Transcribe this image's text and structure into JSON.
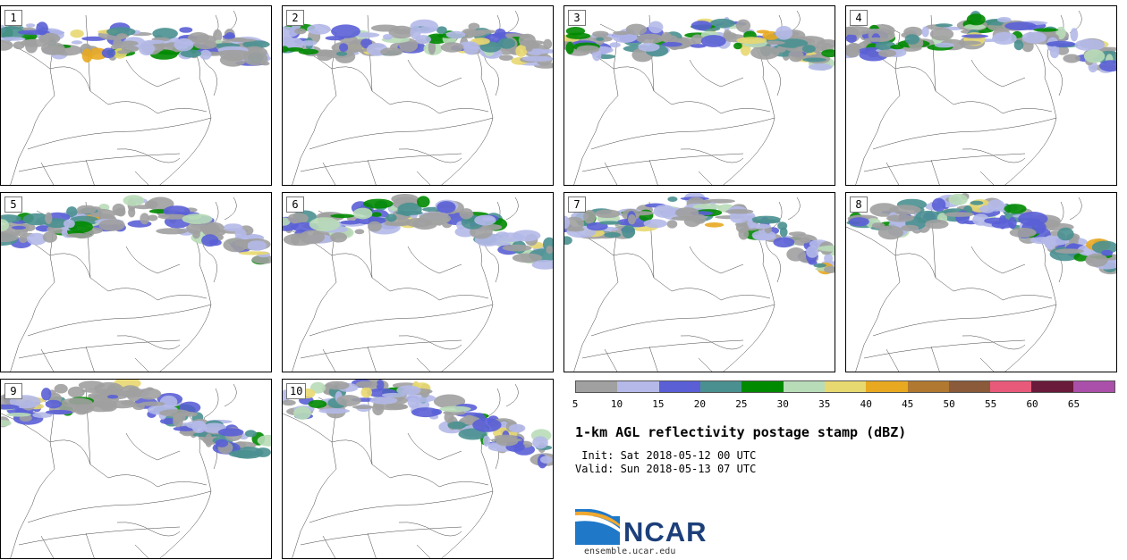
{
  "stamps": [
    {
      "label": "1"
    },
    {
      "label": "2"
    },
    {
      "label": "3"
    },
    {
      "label": "4"
    },
    {
      "label": "5"
    },
    {
      "label": "6"
    },
    {
      "label": "7"
    },
    {
      "label": "8"
    },
    {
      "label": "9"
    },
    {
      "label": "10"
    }
  ],
  "colorbar": {
    "colors": [
      "#a0a0a0",
      "#b4b9e8",
      "#5a5fd6",
      "#4a9090",
      "#008a00",
      "#b8dcb8",
      "#e8d870",
      "#e8a820",
      "#b07830",
      "#8a5a3a",
      "#e85a7a",
      "#6a1a3a",
      "#aa50aa"
    ],
    "ticks": [
      "5",
      "10",
      "15",
      "20",
      "25",
      "30",
      "35",
      "40",
      "45",
      "50",
      "55",
      "60",
      "65"
    ]
  },
  "title": "1-km AGL reflectivity postage stamp (dBZ)",
  "init": " Init: Sat 2018-05-12 00 UTC",
  "valid": "Valid: Sun 2018-05-13 07 UTC",
  "logo": {
    "name": "NCAR",
    "url": "ensemble.ucar.edu"
  }
}
